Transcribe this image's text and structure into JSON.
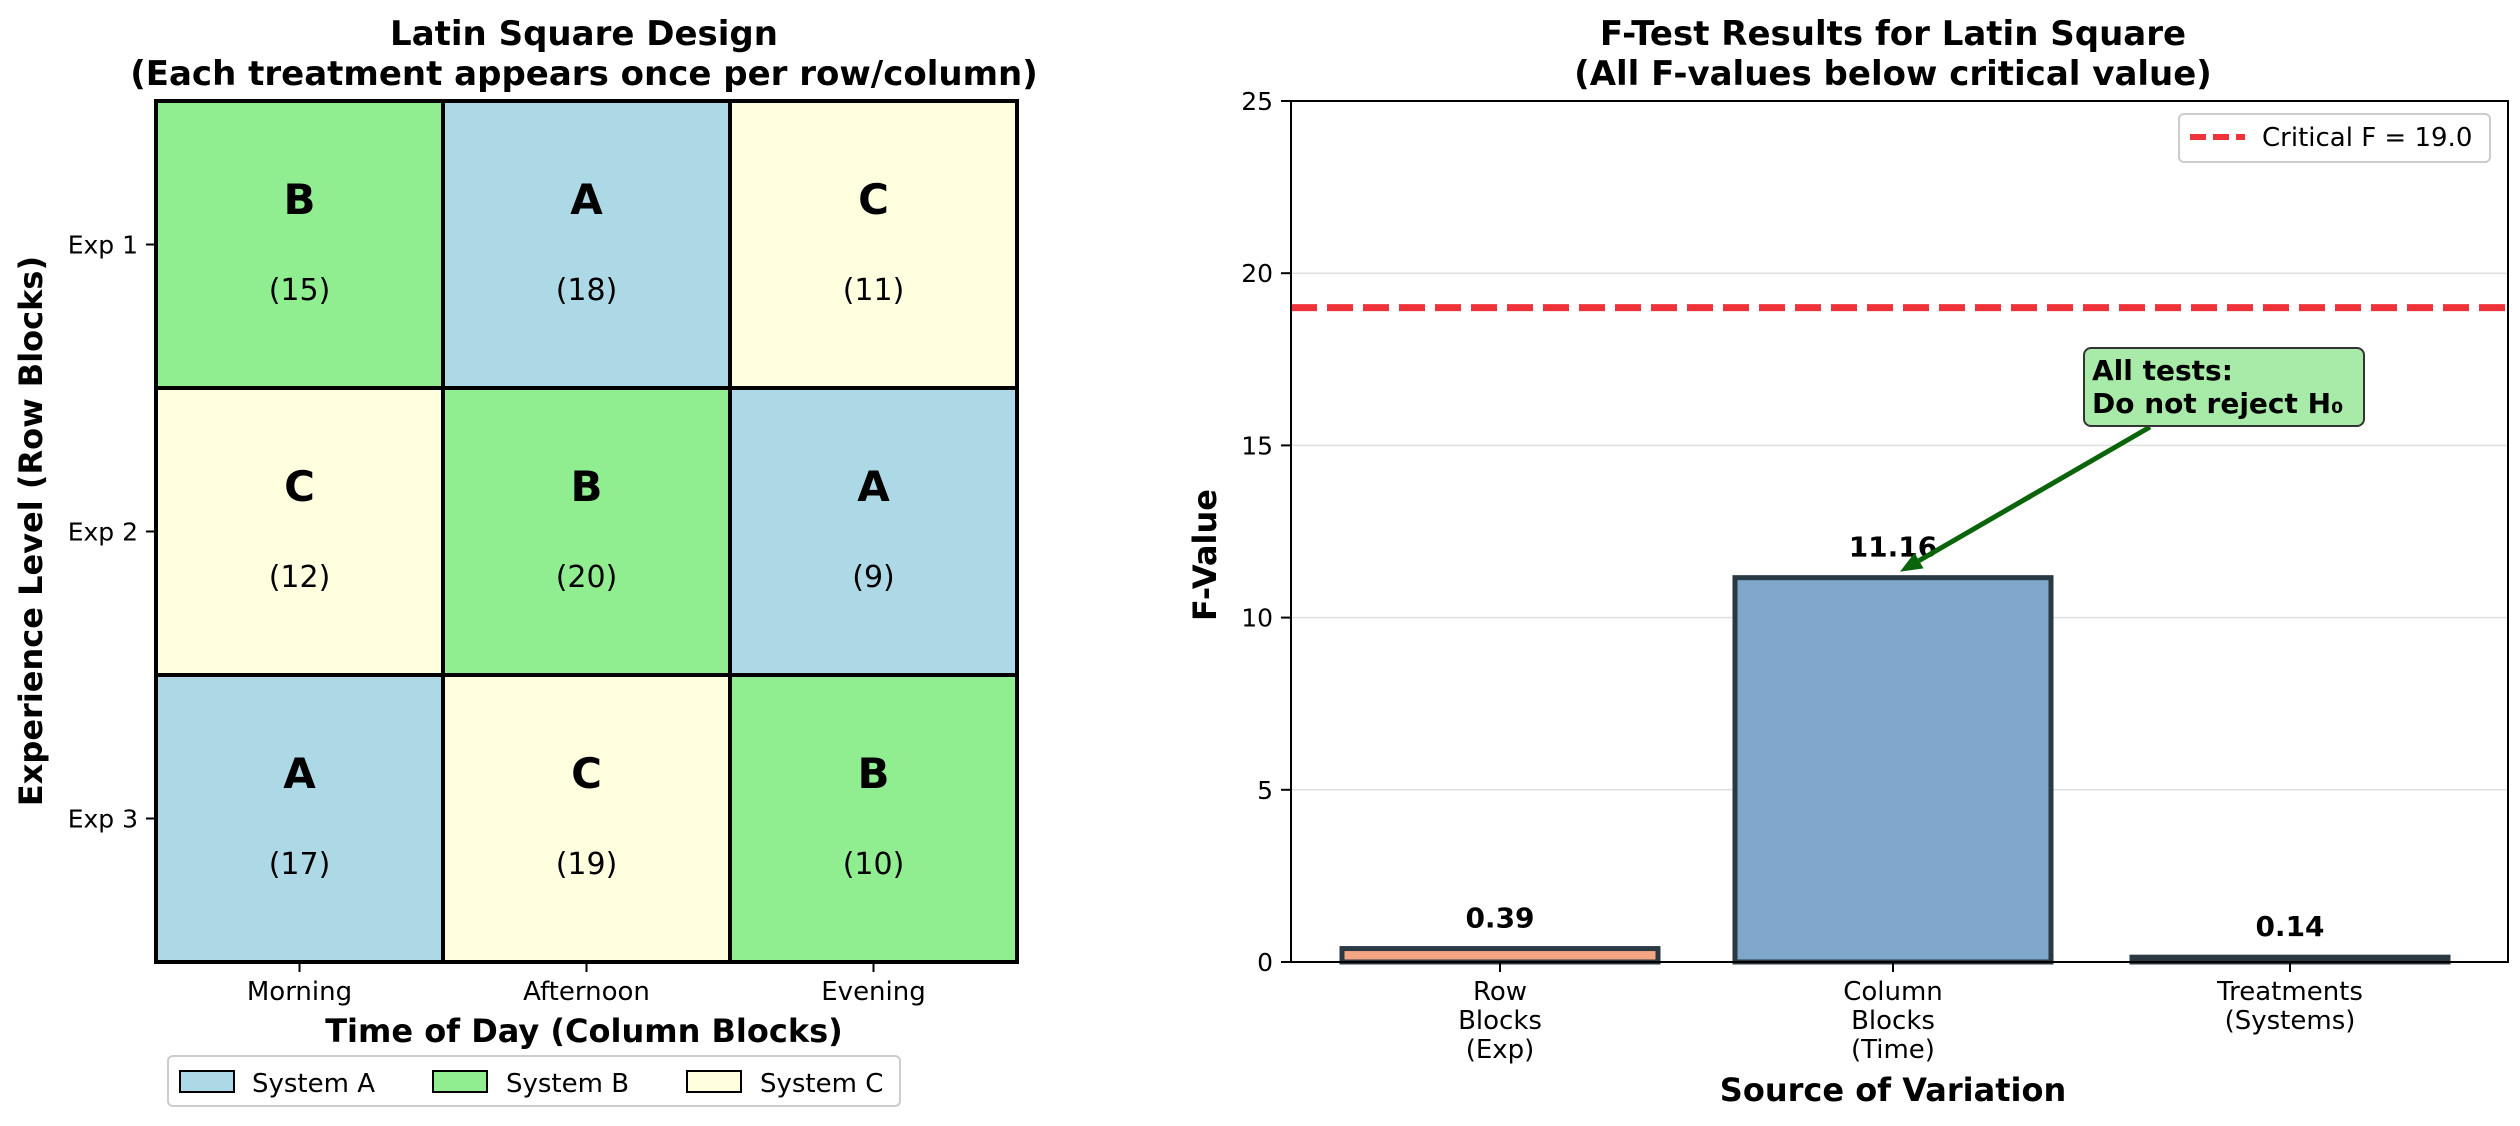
{
  "colors": {
    "system_a": "#add8e6",
    "system_b": "#90ee90",
    "system_c": "#ffffe0",
    "critical_line": "#f0323a",
    "bar_rows": "#f4a582",
    "bar_cols": "#7ea7cb",
    "bar_treat": "#2f3e36",
    "annotation_bg": "#a8eaa8",
    "annotation_arrow": "#0a640a"
  },
  "chart_data": [
    {
      "type": "table",
      "title_line1": "Latin Square Design",
      "title_line2": "(Each treatment appears once per row/column)",
      "xlabel": "Time of Day (Column Blocks)",
      "ylabel": "Experience Level (Row Blocks)",
      "columns": [
        "Morning",
        "Afternoon",
        "Evening"
      ],
      "rows": [
        "Exp 1",
        "Exp 2",
        "Exp 3"
      ],
      "cells": [
        [
          {
            "treatment": "B",
            "value": "(15)"
          },
          {
            "treatment": "A",
            "value": "(18)"
          },
          {
            "treatment": "C",
            "value": "(11)"
          }
        ],
        [
          {
            "treatment": "C",
            "value": "(12)"
          },
          {
            "treatment": "B",
            "value": "(20)"
          },
          {
            "treatment": "A",
            "value": "(9)"
          }
        ],
        [
          {
            "treatment": "A",
            "value": "(17)"
          },
          {
            "treatment": "C",
            "value": "(19)"
          },
          {
            "treatment": "B",
            "value": "(10)"
          }
        ]
      ],
      "legend": [
        {
          "label": "System A",
          "key": "A"
        },
        {
          "label": "System B",
          "key": "B"
        },
        {
          "label": "System C",
          "key": "C"
        }
      ],
      "legend_position": "bottom-center"
    },
    {
      "type": "bar",
      "title_line1": "F-Test Results for Latin Square",
      "title_line2": "(All F-values below critical value)",
      "xlabel": "Source of Variation",
      "ylabel": "F-Value",
      "categories": [
        [
          "Row",
          "Blocks",
          "(Exp)"
        ],
        [
          "Column",
          "Blocks",
          "(Time)"
        ],
        [
          "Treatments",
          "(Systems)"
        ]
      ],
      "values": [
        0.39,
        11.16,
        0.14
      ],
      "value_labels": [
        "0.39",
        "11.16",
        "0.14"
      ],
      "ylim": [
        0,
        25
      ],
      "yticks": [
        0,
        5,
        10,
        15,
        20,
        25
      ],
      "grid": "y",
      "critical_value": 19.0,
      "legend_label": "Critical F = 19.0",
      "legend_position": "top-right",
      "annotation": {
        "line1": "All tests:",
        "line2": "Do not reject H₀",
        "points_to": "Column Blocks (Time) bar top"
      }
    }
  ]
}
